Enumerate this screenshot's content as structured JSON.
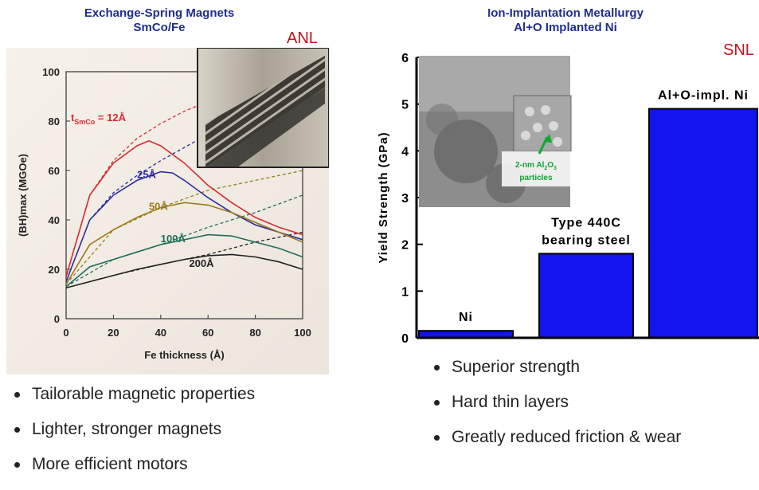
{
  "left_panel": {
    "title_line1": "Exchange-Spring Magnets",
    "title_line2": "SmCo/Fe",
    "lab": "ANL",
    "bullets": [
      "Tailorable magnetic properties",
      "Lighter, stronger magnets",
      "More efficient motors"
    ]
  },
  "right_panel": {
    "title_line1": "Ion-Implantation Metallurgy",
    "title_line2": "Al+O Implanted Ni",
    "lab": "SNL",
    "inset_annotation": {
      "text": "2-nm Al",
      "sub2": "2",
      "mid": "O",
      "sub3": "3",
      "line2": "particles"
    },
    "bullets": [
      "Superior strength",
      "Hard thin layers",
      "Greatly reduced friction & wear"
    ]
  },
  "chart_data": [
    {
      "type": "line",
      "xlabel": "Fe thickness   (Å)",
      "ylabel": "(BH)max  (MGOe)",
      "xlim": [
        0,
        100
      ],
      "ylim": [
        0,
        100
      ],
      "xticks": [
        0,
        20,
        40,
        60,
        80,
        100
      ],
      "yticks": [
        0,
        20,
        40,
        60,
        80,
        100
      ],
      "curve_label_prefix": "t",
      "curve_label_sub": "SmCo",
      "series": [
        {
          "name": "= 12Å",
          "color": "#d62c33",
          "x": [
            0,
            10,
            20,
            30,
            35,
            40,
            50,
            60,
            70,
            80,
            90,
            100
          ],
          "y": [
            17,
            50,
            63,
            70,
            72,
            70,
            63,
            54,
            47,
            41,
            37,
            34
          ]
        },
        {
          "name": "25Å",
          "color": "#2c2c9a",
          "x": [
            0,
            10,
            20,
            30,
            40,
            45,
            50,
            60,
            70,
            80,
            90,
            100
          ],
          "y": [
            15,
            40,
            50,
            56,
            59.5,
            59,
            56,
            49,
            43,
            38,
            35,
            32
          ]
        },
        {
          "name": "50Å",
          "color": "#9a7a1c",
          "x": [
            0,
            10,
            20,
            30,
            40,
            50,
            60,
            70,
            80,
            90,
            100
          ],
          "y": [
            14,
            30,
            36,
            41,
            45,
            47,
            46,
            43,
            39,
            35,
            31
          ]
        },
        {
          "name": "100Å",
          "color": "#1f6e5c",
          "x": [
            0,
            10,
            20,
            30,
            40,
            50,
            60,
            70,
            80,
            90,
            100
          ],
          "y": [
            13,
            21,
            24,
            27,
            30,
            32,
            34,
            33.5,
            31,
            28.5,
            25
          ]
        },
        {
          "name": "200Å",
          "color": "#222222",
          "x": [
            0,
            10,
            20,
            30,
            40,
            50,
            60,
            70,
            80,
            90,
            100
          ],
          "y": [
            12.5,
            15,
            17.5,
            20,
            22,
            24,
            25.5,
            26,
            25,
            23,
            20
          ]
        }
      ],
      "dashed_series": [
        {
          "color": "#d62c33",
          "x": [
            0,
            10,
            20,
            30,
            40,
            50,
            60,
            75
          ],
          "y": [
            17,
            50,
            64,
            73,
            79,
            84,
            88,
            92
          ]
        },
        {
          "color": "#2c2c9a",
          "x": [
            0,
            10,
            20,
            30,
            40,
            55,
            70
          ],
          "y": [
            15,
            40,
            51,
            58,
            64,
            72,
            80
          ]
        },
        {
          "color": "#9a7a1c",
          "x": [
            0,
            20,
            40,
            60,
            80,
            100
          ],
          "y": [
            14,
            36,
            45,
            52,
            56,
            60
          ]
        },
        {
          "color": "#1f6e5c",
          "x": [
            0,
            20,
            40,
            60,
            80,
            100
          ],
          "y": [
            13,
            24,
            30,
            37,
            43,
            50
          ]
        },
        {
          "color": "#222222",
          "x": [
            0,
            20,
            40,
            60,
            80,
            100
          ],
          "y": [
            12.5,
            17.5,
            22,
            26,
            31,
            35
          ]
        }
      ]
    },
    {
      "type": "bar",
      "ylabel": "Yield Strength (GPa)",
      "ylim": [
        0,
        6
      ],
      "yticks": [
        0,
        1,
        2,
        3,
        4,
        5,
        6
      ],
      "categories": [
        "Ni",
        "Type 440C bearing steel",
        "Al+O-impl. Ni"
      ],
      "label_lines": [
        [
          "Ni"
        ],
        [
          "Type 440C",
          "bearing steel"
        ],
        [
          "Al+O-impl. Ni"
        ]
      ],
      "values": [
        0.15,
        1.8,
        4.9
      ],
      "bar_color": "#1414ee"
    }
  ]
}
